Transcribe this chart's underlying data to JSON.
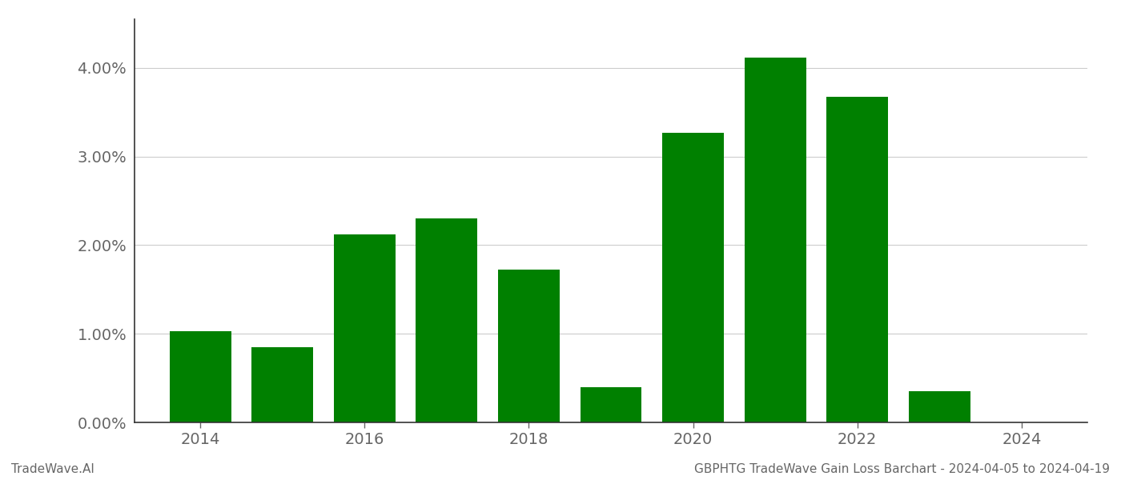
{
  "years": [
    2014,
    2015,
    2016,
    2017,
    2018,
    2019,
    2020,
    2021,
    2022,
    2023
  ],
  "values": [
    0.0103,
    0.0085,
    0.0212,
    0.023,
    0.0172,
    0.004,
    0.0327,
    0.0412,
    0.0367,
    0.0035
  ],
  "bar_color": "#008000",
  "background_color": "#ffffff",
  "footer_left": "TradeWave.AI",
  "footer_right": "GBPHTG TradeWave Gain Loss Barchart - 2024-04-05 to 2024-04-19",
  "ylim": [
    0,
    0.0455
  ],
  "ytick_values": [
    0.0,
    0.01,
    0.02,
    0.03,
    0.04
  ],
  "ytick_labels": [
    "0.00%",
    "1.00%",
    "2.00%",
    "3.00%",
    "4.00%"
  ],
  "xtick_values": [
    2014,
    2016,
    2018,
    2020,
    2022,
    2024
  ],
  "xlim": [
    2013.2,
    2024.8
  ],
  "grid_color": "#cccccc",
  "spine_color": "#333333",
  "tick_color": "#666666",
  "bar_width": 0.75,
  "footer_fontsize": 11,
  "tick_fontsize": 14
}
